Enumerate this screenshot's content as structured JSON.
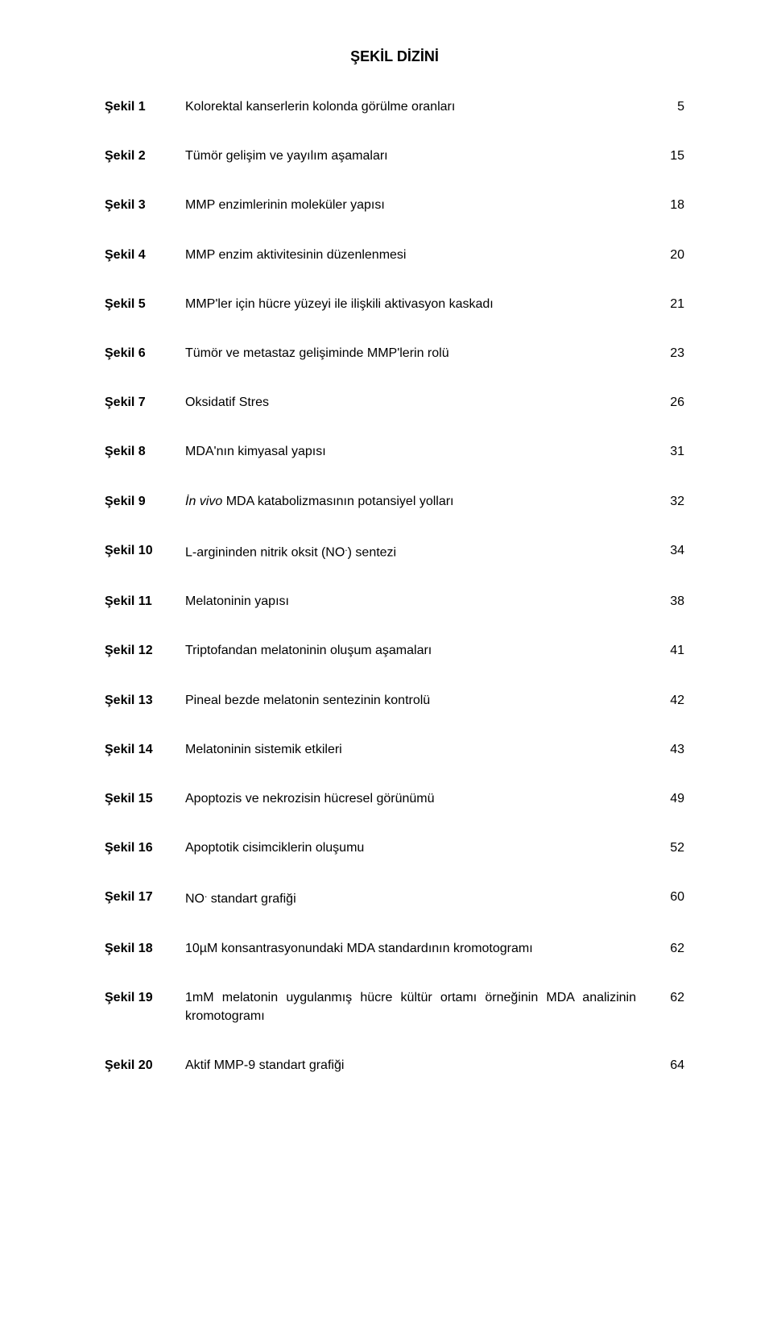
{
  "title": "ŞEKİL DİZİNİ",
  "rows": [
    {
      "label": "Şekil 1",
      "desc": "Kolorektal kanserlerin kolonda görülme oranları",
      "page": "5"
    },
    {
      "label": "Şekil 2",
      "desc": "Tümör gelişim ve yayılım aşamaları",
      "page": "15"
    },
    {
      "label": "Şekil 3",
      "desc": "MMP enzimlerinin moleküler yapısı",
      "page": "18"
    },
    {
      "label": "Şekil 4",
      "desc": "MMP enzim aktivitesinin düzenlenmesi",
      "page": "20"
    },
    {
      "label": "Şekil 5",
      "desc": "MMP'ler için hücre yüzeyi ile ilişkili aktivasyon kaskadı",
      "page": "21"
    },
    {
      "label": "Şekil 6",
      "desc": "Tümör ve metastaz gelişiminde MMP'lerin rolü",
      "page": "23"
    },
    {
      "label": "Şekil 7",
      "desc": "Oksidatif Stres",
      "page": "26"
    },
    {
      "label": "Şekil 8",
      "desc": "MDA'nın kimyasal yapısı",
      "page": "31"
    },
    {
      "label": "Şekil 9",
      "desc_pre": "İn vivo",
      "desc_post": " MDA katabolizmasının potansiyel yolları",
      "page": "32",
      "italic_prefix": true
    },
    {
      "label": "Şekil 10",
      "desc_pre": "L-argininden  nitrik oksit (NO",
      "desc_post": ") sentezi",
      "sup": ".",
      "page": "34",
      "has_sup": true
    },
    {
      "label": "Şekil 11",
      "desc": "Melatoninin yapısı",
      "page": "38"
    },
    {
      "label": "Şekil 12",
      "desc": "Triptofandan melatoninin oluşum aşamaları",
      "page": "41"
    },
    {
      "label": "Şekil 13",
      "desc": "Pineal bezde melatonin sentezinin kontrolü",
      "page": "42"
    },
    {
      "label": "Şekil 14",
      "desc": "Melatoninin sistemik etkileri",
      "page": "43"
    },
    {
      "label": "Şekil 15",
      "desc": "Apoptozis ve nekrozisin hücresel görünümü",
      "page": "49"
    },
    {
      "label": "Şekil 16",
      "desc": "Apoptotik cisimciklerin oluşumu",
      "page": "52"
    },
    {
      "label": "Şekil 17",
      "desc_pre": "NO",
      "desc_post": " standart grafiği",
      "sup": ".",
      "page": "60",
      "has_sup": true
    },
    {
      "label": "Şekil 18",
      "desc": "10µM konsantrasyonundaki MDA standardının kromotogramı",
      "page": "62"
    },
    {
      "label": "Şekil 19",
      "desc": "1mM melatonin uygulanmış hücre kültür ortamı örneğinin MDA analizinin kromotogramı",
      "page": "62"
    },
    {
      "label": "Şekil 20",
      "desc": "Aktif MMP-9 standart grafiği",
      "page": "64"
    }
  ]
}
